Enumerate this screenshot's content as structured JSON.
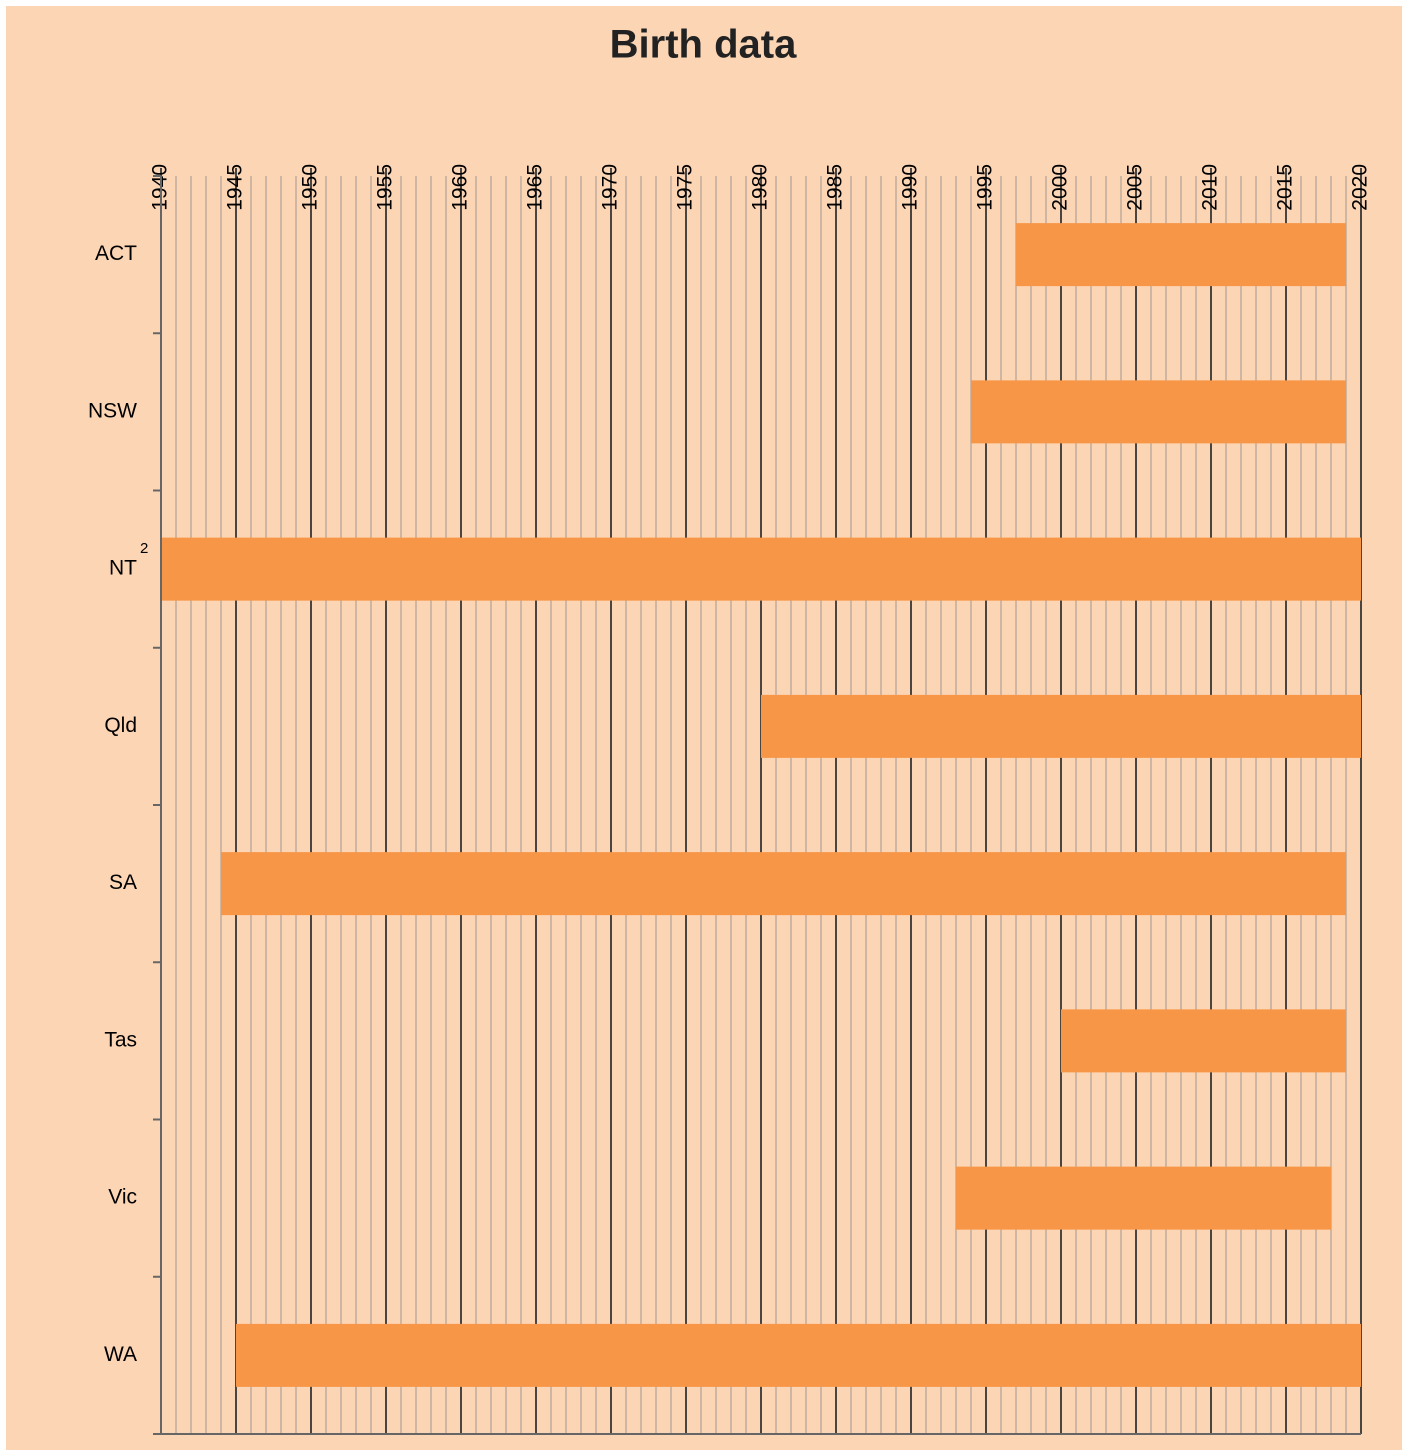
{
  "chart_data": {
    "type": "range_bar",
    "title": "Birth data",
    "categories": [
      "ACT",
      "NSW",
      "NT",
      "Qld",
      "SA",
      "Tas",
      "Vic",
      "WA"
    ],
    "category_superscripts": [
      null,
      null,
      "2",
      null,
      null,
      null,
      null,
      null
    ],
    "start": [
      1997,
      1994,
      1940,
      1980,
      1944,
      2000,
      1993,
      1945
    ],
    "end": [
      2019,
      2019,
      2020,
      2020,
      2019,
      2019,
      2018,
      2020
    ],
    "color": "#f79646",
    "xlim": [
      1940,
      2020
    ],
    "xticks": [
      1940,
      1945,
      1950,
      1955,
      1960,
      1965,
      1970,
      1975,
      1980,
      1985,
      1990,
      1995,
      2000,
      2005,
      2010,
      2015,
      2020
    ],
    "xminorticks": [
      1940,
      1941,
      1942,
      1943,
      1944,
      1945,
      1946,
      1947,
      1948,
      1949,
      1950,
      1951,
      1952,
      1953,
      1954,
      1955,
      1956,
      1957,
      1958,
      1959,
      1960,
      1961,
      1962,
      1963,
      1964,
      1965,
      1966,
      1967,
      1968,
      1969,
      1970,
      1971,
      1972,
      1973,
      1974,
      1975,
      1976,
      1977,
      1978,
      1979,
      1980,
      1981,
      1982,
      1983,
      1984,
      1985,
      1986,
      1987,
      1988,
      1989,
      1990,
      1991,
      1992,
      1993,
      1994,
      1995,
      1996,
      1997,
      1998,
      1999,
      2000,
      2001,
      2002,
      2003,
      2004,
      2005,
      2006,
      2007,
      2008,
      2009,
      2010,
      2011,
      2012,
      2013,
      2014,
      2015,
      2016,
      2017,
      2018,
      2019,
      2020
    ],
    "grid": true
  }
}
